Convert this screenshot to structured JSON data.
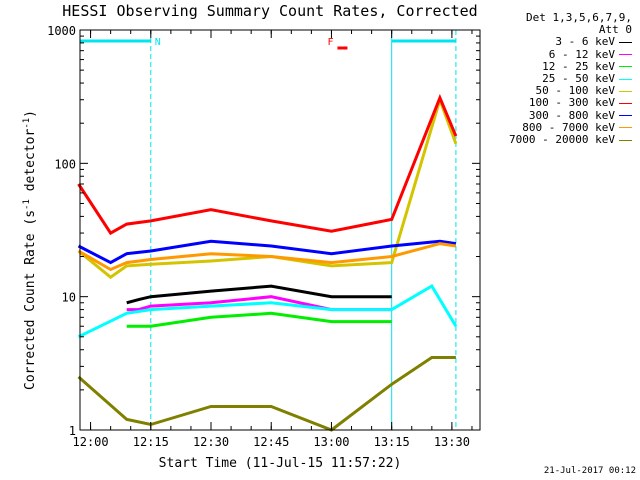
{
  "chart_data": {
    "type": "line",
    "title": "HESSI Observing Summary Count Rates, Corrected",
    "xlabel": "Start Time (11-Jul-15 11:57:22)",
    "ylabel": "Corrected Count Rate (s",
    "ylabel_sup1": "-1",
    "ylabel_mid": " detector",
    "ylabel_sup2": "-1",
    "ylabel_end": ")",
    "y_scale": "log",
    "ylim": [
      1,
      1000
    ],
    "y_ticks": [
      "1",
      "10",
      "100",
      "1000"
    ],
    "xlim": [
      "11:57:22",
      "13:37:00"
    ],
    "x_ticks": [
      "12:00",
      "12:15",
      "12:30",
      "12:45",
      "13:00",
      "13:15",
      "13:30"
    ],
    "legend_header": [
      "Det 1,3,5,6,7,9,",
      "Att 0"
    ],
    "legend_placement": "right, outside",
    "annotations": [
      {
        "label": "N",
        "color": "#00e5ee",
        "at": "12:16"
      },
      {
        "label": "F",
        "color": "#ff0000",
        "at": "12:59"
      }
    ],
    "night_bars": [
      [
        "11:57:22",
        "12:15"
      ],
      [
        "13:15",
        "13:31"
      ]
    ],
    "series": [
      {
        "name": "3 - 6 keV",
        "color": "#000000",
        "x": [
          "12:09",
          "12:12",
          "12:15",
          "12:30",
          "12:45",
          "13:00",
          "13:15"
        ],
        "y": [
          9,
          9.5,
          10,
          11,
          12,
          10,
          10
        ]
      },
      {
        "name": "6 - 12 keV",
        "color": "#ff00ff",
        "x": [
          "12:09",
          "12:12",
          "12:15",
          "12:30",
          "12:45",
          "13:00",
          "13:15"
        ],
        "y": [
          8,
          8,
          8.5,
          9,
          10,
          8,
          8
        ]
      },
      {
        "name": "12 - 25 keV",
        "color": "#00ee00",
        "x": [
          "12:09",
          "12:15",
          "12:30",
          "12:45",
          "13:00",
          "13:15"
        ],
        "y": [
          6,
          6,
          7,
          7.5,
          6.5,
          6.5
        ]
      },
      {
        "name": "25 - 50 keV",
        "color": "#00ffff",
        "x": [
          "11:57",
          "12:09",
          "12:15",
          "12:30",
          "12:45",
          "13:00",
          "13:15",
          "13:25",
          "13:31"
        ],
        "y": [
          5,
          7.5,
          8,
          8.5,
          9,
          8,
          8,
          12,
          6
        ]
      },
      {
        "name": "50 - 100 keV",
        "color": "#d4c400",
        "x": [
          "11:57",
          "12:05",
          "12:09",
          "12:15",
          "12:30",
          "12:45",
          "13:00",
          "13:15",
          "13:27",
          "13:31"
        ],
        "y": [
          22,
          14,
          17,
          17.5,
          18.5,
          20,
          17,
          18,
          300,
          140
        ]
      },
      {
        "name": "100 - 300 keV",
        "color": "#ff0000",
        "x": [
          "11:57",
          "12:05",
          "12:09",
          "12:15",
          "12:30",
          "12:45",
          "13:00",
          "13:15",
          "13:27",
          "13:31"
        ],
        "y": [
          70,
          30,
          35,
          37,
          45,
          37,
          31,
          38,
          310,
          160
        ]
      },
      {
        "name": "300 - 800 keV",
        "color": "#0000ff",
        "x": [
          "11:57",
          "12:05",
          "12:09",
          "12:15",
          "12:30",
          "12:45",
          "13:00",
          "13:15",
          "13:27",
          "13:31"
        ],
        "y": [
          24,
          18,
          21,
          22,
          26,
          24,
          21,
          24,
          26,
          25
        ]
      },
      {
        "name": "800 - 7000 keV",
        "color": "#ff9900",
        "x": [
          "11:57",
          "12:05",
          "12:09",
          "12:15",
          "12:30",
          "12:45",
          "13:00",
          "13:15",
          "13:27",
          "13:31"
        ],
        "y": [
          22,
          16,
          18,
          19,
          21,
          20,
          18,
          20,
          25,
          24
        ]
      },
      {
        "name": "7000 - 20000 keV",
        "color": "#808000",
        "x": [
          "11:57",
          "12:09",
          "12:15",
          "12:30",
          "12:45",
          "13:00",
          "13:15",
          "13:25",
          "13:31"
        ],
        "y": [
          2.5,
          1.2,
          1.1,
          1.5,
          1.5,
          1,
          2.2,
          3.5,
          3.5
        ]
      }
    ]
  },
  "footer": {
    "date_stamp": "21-Jul-2017 00:12"
  }
}
